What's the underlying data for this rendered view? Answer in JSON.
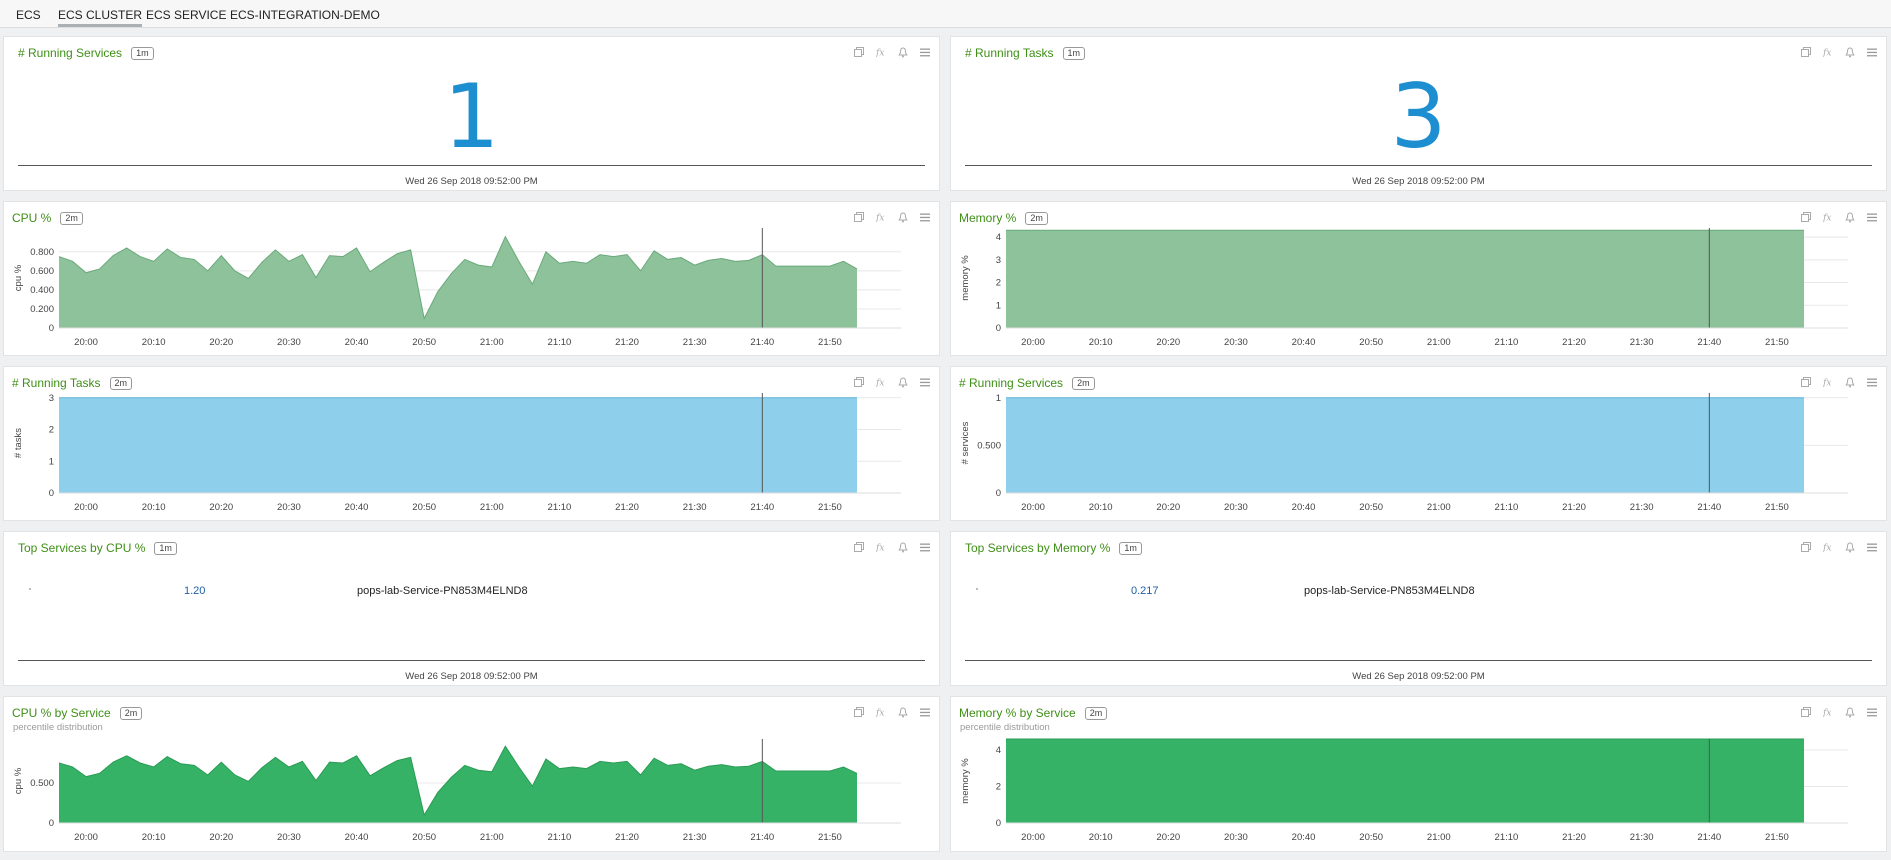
{
  "tabs": [
    {
      "label": "ECS"
    },
    {
      "label": "ECS CLUSTER",
      "active": true
    },
    {
      "label": "ECS SERVICE"
    },
    {
      "label": "ECS-INTEGRATION-DEMO"
    }
  ],
  "toolbar_icons": [
    "copy-icon",
    "function-icon",
    "bell-icon",
    "menu-icon"
  ],
  "colors": {
    "accent_title": "#3f8f17",
    "big_number": "#1d8fd1",
    "series_green": "#8dc29a",
    "series_blue": "#8ecfeb",
    "series_green_strong": "#35b266"
  },
  "panels": {
    "running_services_value": {
      "title": "# Running Services",
      "badge": "1m",
      "value": "1",
      "timestamp": "Wed 26 Sep 2018 09:52:00 PM"
    },
    "running_tasks_value": {
      "title": "# Running Tasks",
      "badge": "1m",
      "value": "3",
      "timestamp": "Wed 26 Sep 2018 09:52:00 PM"
    },
    "cpu": {
      "title": "CPU %",
      "badge": "2m"
    },
    "memory": {
      "title": "Memory %",
      "badge": "2m"
    },
    "running_tasks_chart": {
      "title": "# Running Tasks",
      "badge": "2m"
    },
    "running_services_chart": {
      "title": "# Running Services",
      "badge": "2m"
    },
    "top_cpu": {
      "title": "Top Services by CPU %",
      "badge": "1m",
      "value": "1.20",
      "service": "pops-lab-Service-PN853M4ELND8",
      "timestamp": "Wed 26 Sep 2018 09:52:00 PM"
    },
    "top_mem": {
      "title": "Top Services by Memory %",
      "badge": "1m",
      "value": "0.217",
      "service": "pops-lab-Service-PN853M4ELND8",
      "timestamp": "Wed 26 Sep 2018 09:52:00 PM"
    },
    "cpu_by_service": {
      "title": "CPU % by Service",
      "badge": "2m",
      "subtitle": "percentile distribution"
    },
    "mem_by_service": {
      "title": "Memory % by Service",
      "badge": "2m",
      "subtitle": "percentile distribution"
    }
  },
  "chart_data": [
    {
      "id": "cpu",
      "type": "area",
      "ylabel": "cpu %",
      "x_ticks": [
        "20:00",
        "20:10",
        "20:20",
        "20:30",
        "20:40",
        "20:50",
        "21:00",
        "21:10",
        "21:20",
        "21:30",
        "21:40",
        "21:50"
      ],
      "y_ticks": [
        "0",
        "0.200",
        "0.400",
        "0.600",
        "0.800"
      ],
      "ylim": [
        0,
        1.05
      ],
      "xlim": [
        1196,
        1314
      ],
      "marker_x": 1300,
      "color": "#8dc29a",
      "grid": true,
      "series": [
        {
          "x": [
            1196,
            1198,
            1200,
            1202,
            1204,
            1206,
            1208,
            1210,
            1212,
            1214,
            1216,
            1218,
            1220,
            1222,
            1224,
            1226,
            1228,
            1230,
            1232,
            1234,
            1236,
            1238,
            1240,
            1242,
            1244,
            1246,
            1248,
            1250,
            1252,
            1254,
            1256,
            1258,
            1260,
            1262,
            1264,
            1266,
            1268,
            1270,
            1272,
            1274,
            1276,
            1278,
            1280,
            1282,
            1284,
            1286,
            1288,
            1290,
            1292,
            1294,
            1296,
            1298,
            1300,
            1302,
            1304,
            1306,
            1308,
            1310,
            1312,
            1314
          ],
          "values": [
            0.75,
            0.7,
            0.58,
            0.62,
            0.76,
            0.84,
            0.75,
            0.7,
            0.83,
            0.74,
            0.72,
            0.6,
            0.76,
            0.6,
            0.52,
            0.69,
            0.82,
            0.7,
            0.77,
            0.53,
            0.76,
            0.75,
            0.84,
            0.59,
            0.69,
            0.78,
            0.82,
            0.1,
            0.38,
            0.57,
            0.72,
            0.66,
            0.64,
            0.96,
            0.7,
            0.46,
            0.8,
            0.68,
            0.7,
            0.68,
            0.77,
            0.75,
            0.77,
            0.6,
            0.81,
            0.72,
            0.74,
            0.66,
            0.71,
            0.73,
            0.7,
            0.71,
            0.77,
            0.65,
            0.65,
            0.65,
            0.65,
            0.65,
            0.7,
            0.62
          ]
        }
      ]
    },
    {
      "id": "memory",
      "type": "area",
      "ylabel": "memory %",
      "x_ticks": [
        "20:00",
        "20:10",
        "20:20",
        "20:30",
        "20:40",
        "20:50",
        "21:00",
        "21:10",
        "21:20",
        "21:30",
        "21:40",
        "21:50"
      ],
      "y_ticks": [
        "0",
        "1",
        "2",
        "3",
        "4"
      ],
      "ylim": [
        0,
        4.4
      ],
      "xlim": [
        1196,
        1314
      ],
      "marker_x": 1300,
      "color": "#8dc29a",
      "grid": true,
      "series": [
        {
          "x": [
            1196,
            1314
          ],
          "values": [
            4.3,
            4.3
          ]
        }
      ]
    },
    {
      "id": "running_tasks",
      "type": "area",
      "ylabel": "# tasks",
      "x_ticks": [
        "20:00",
        "20:10",
        "20:20",
        "20:30",
        "20:40",
        "20:50",
        "21:00",
        "21:10",
        "21:20",
        "21:30",
        "21:40",
        "21:50"
      ],
      "y_ticks": [
        "0",
        "1",
        "2",
        "3"
      ],
      "ylim": [
        0,
        3.15
      ],
      "xlim": [
        1196,
        1314
      ],
      "marker_x": 1300,
      "color": "#8ecfeb",
      "grid": true,
      "series": [
        {
          "x": [
            1196,
            1314
          ],
          "values": [
            3,
            3
          ]
        }
      ]
    },
    {
      "id": "running_services",
      "type": "area",
      "ylabel": "# services",
      "x_ticks": [
        "20:00",
        "20:10",
        "20:20",
        "20:30",
        "20:40",
        "20:50",
        "21:00",
        "21:10",
        "21:20",
        "21:30",
        "21:40",
        "21:50"
      ],
      "y_ticks": [
        "0",
        "0.500",
        "1"
      ],
      "ylim": [
        0,
        1.05
      ],
      "xlim": [
        1196,
        1314
      ],
      "marker_x": 1300,
      "color": "#8ecfeb",
      "grid": true,
      "series": [
        {
          "x": [
            1196,
            1314
          ],
          "values": [
            1,
            1
          ]
        }
      ]
    },
    {
      "id": "cpu_by_service",
      "type": "area",
      "ylabel": "cpu %",
      "x_ticks": [
        "20:00",
        "20:10",
        "20:20",
        "20:30",
        "20:40",
        "20:50",
        "21:00",
        "21:10",
        "21:20",
        "21:30",
        "21:40",
        "21:50"
      ],
      "y_ticks": [
        "0",
        "0.500"
      ],
      "ylim": [
        0,
        1.05
      ],
      "xlim": [
        1196,
        1314
      ],
      "marker_x": 1300,
      "color": "#35b266",
      "grid": true,
      "series": [
        {
          "x": [
            1196,
            1198,
            1200,
            1202,
            1204,
            1206,
            1208,
            1210,
            1212,
            1214,
            1216,
            1218,
            1220,
            1222,
            1224,
            1226,
            1228,
            1230,
            1232,
            1234,
            1236,
            1238,
            1240,
            1242,
            1244,
            1246,
            1248,
            1250,
            1252,
            1254,
            1256,
            1258,
            1260,
            1262,
            1264,
            1266,
            1268,
            1270,
            1272,
            1274,
            1276,
            1278,
            1280,
            1282,
            1284,
            1286,
            1288,
            1290,
            1292,
            1294,
            1296,
            1298,
            1300,
            1302,
            1304,
            1306,
            1308,
            1310,
            1312,
            1314
          ],
          "values": [
            0.75,
            0.7,
            0.58,
            0.62,
            0.76,
            0.84,
            0.75,
            0.7,
            0.83,
            0.74,
            0.72,
            0.6,
            0.76,
            0.6,
            0.52,
            0.69,
            0.82,
            0.7,
            0.77,
            0.53,
            0.76,
            0.75,
            0.84,
            0.59,
            0.69,
            0.78,
            0.82,
            0.1,
            0.38,
            0.57,
            0.72,
            0.66,
            0.64,
            0.96,
            0.7,
            0.46,
            0.8,
            0.68,
            0.7,
            0.68,
            0.77,
            0.75,
            0.77,
            0.6,
            0.81,
            0.72,
            0.74,
            0.66,
            0.71,
            0.73,
            0.7,
            0.71,
            0.77,
            0.65,
            0.65,
            0.65,
            0.65,
            0.65,
            0.7,
            0.62
          ]
        }
      ]
    },
    {
      "id": "mem_by_service",
      "type": "area",
      "ylabel": "memory %",
      "x_ticks": [
        "20:00",
        "20:10",
        "20:20",
        "20:30",
        "20:40",
        "20:50",
        "21:00",
        "21:10",
        "21:20",
        "21:30",
        "21:40",
        "21:50"
      ],
      "y_ticks": [
        "0",
        "2",
        "4"
      ],
      "ylim": [
        0,
        4.6
      ],
      "xlim": [
        1196,
        1314
      ],
      "marker_x": 1300,
      "color": "#35b266",
      "grid": true,
      "series": [
        {
          "x": [
            1196,
            1314
          ],
          "values": [
            4.6,
            4.6
          ]
        }
      ]
    }
  ]
}
